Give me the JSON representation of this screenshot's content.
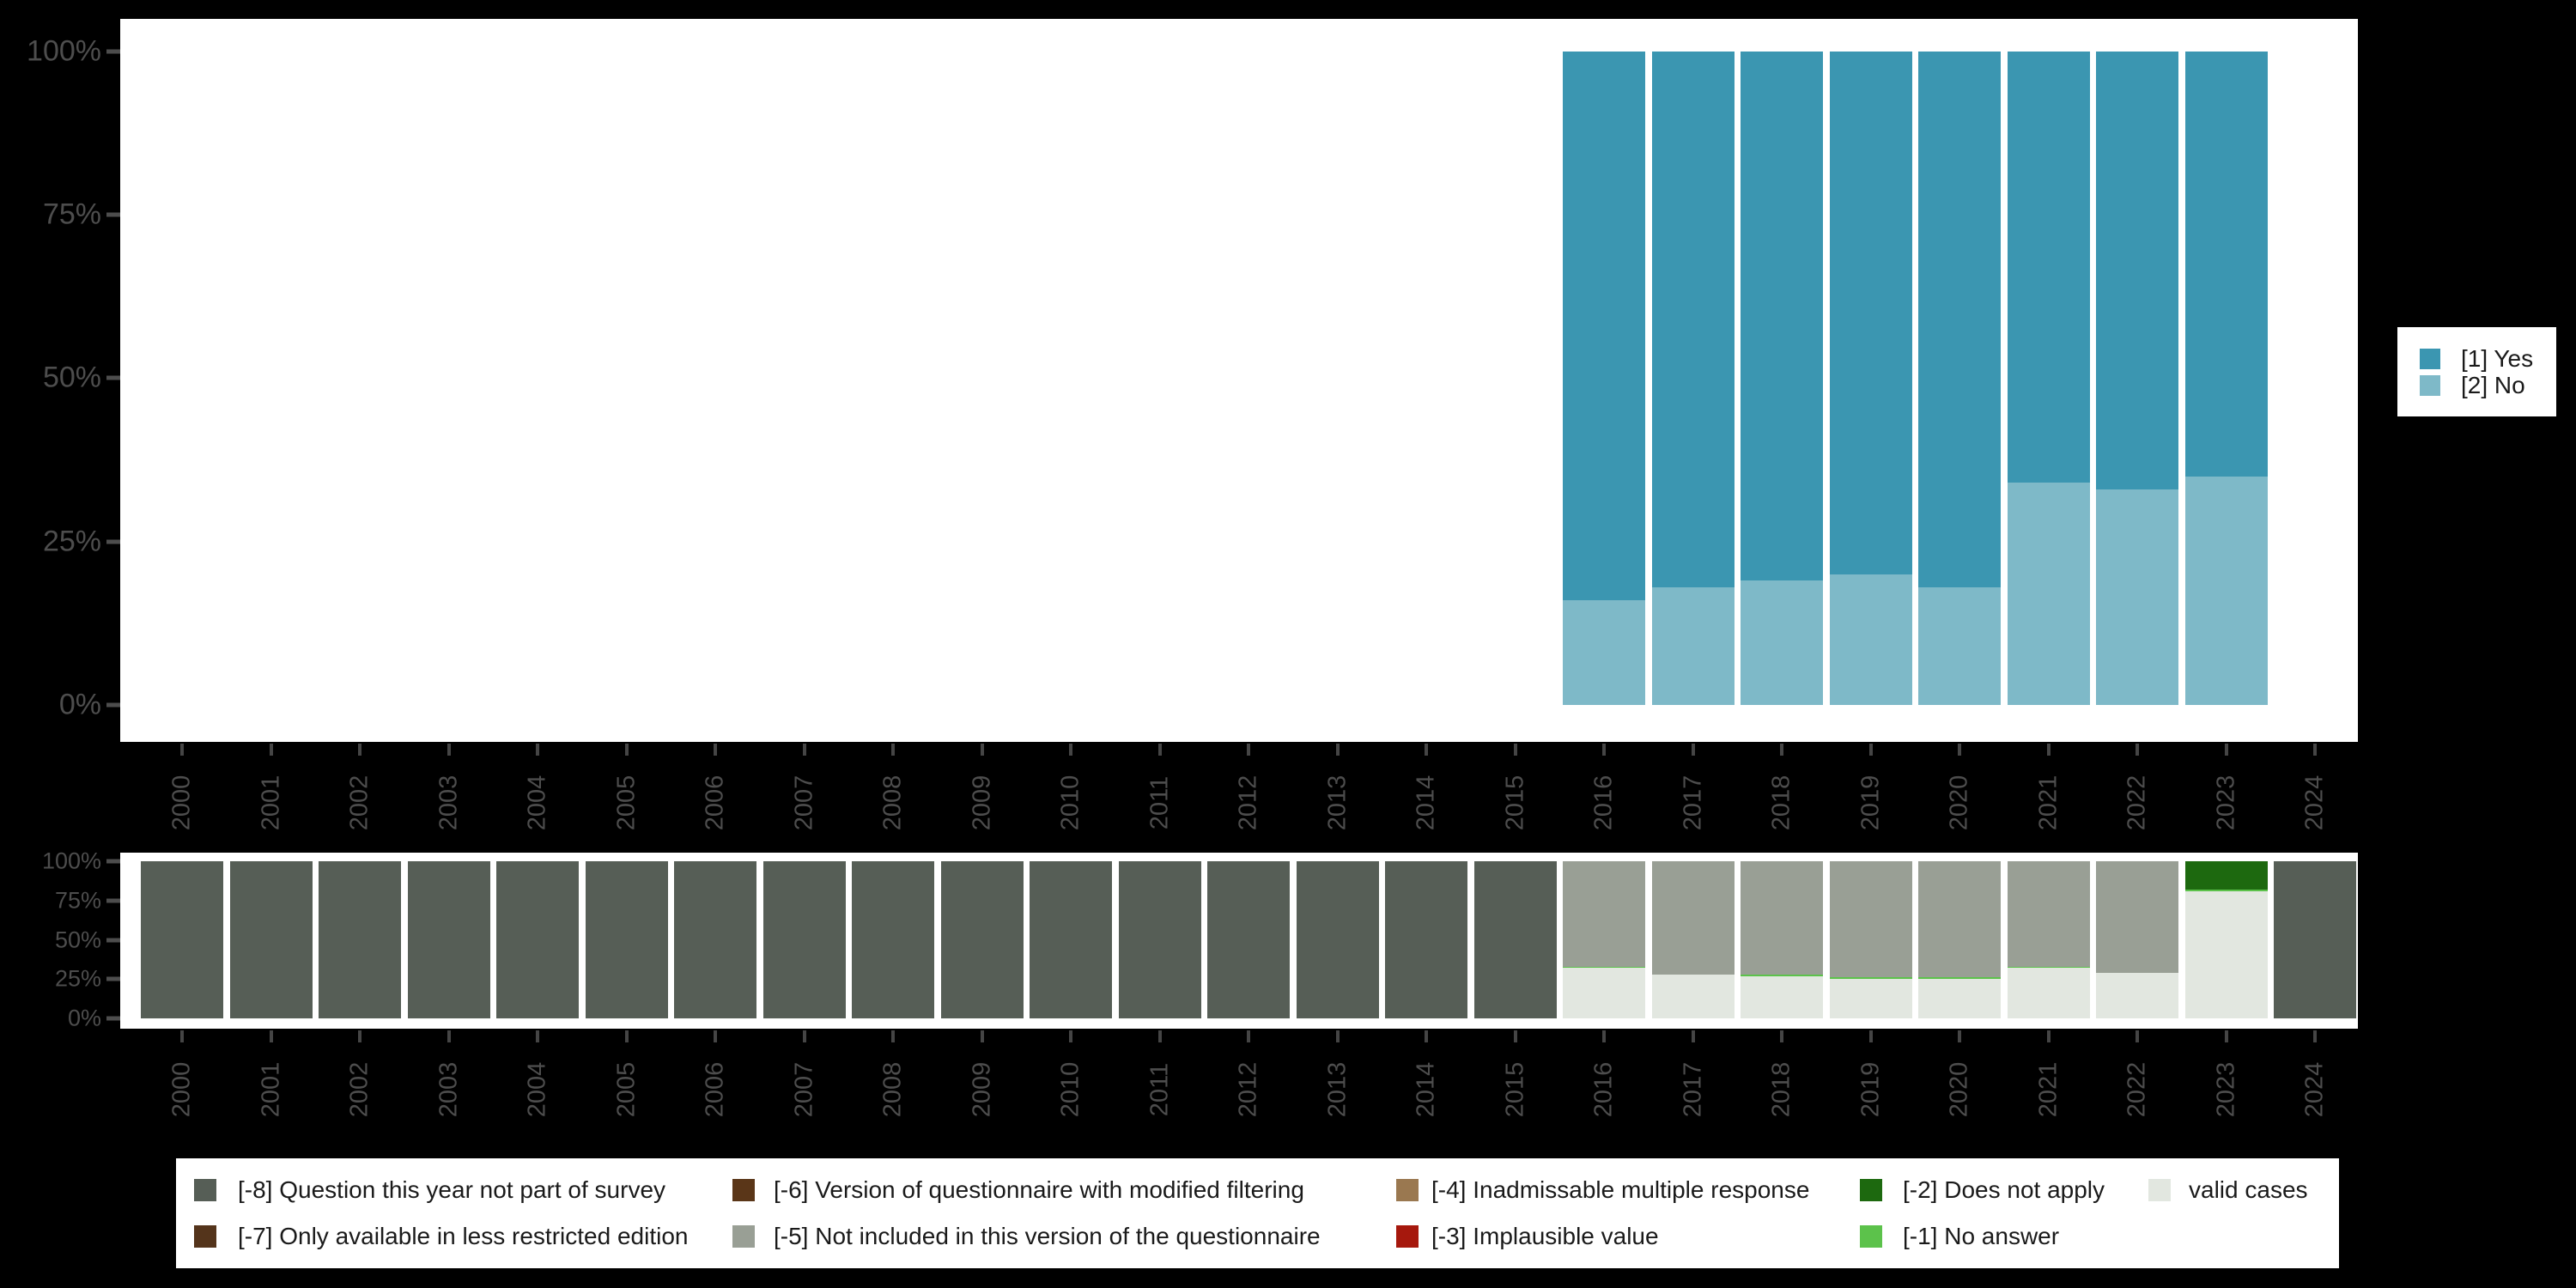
{
  "background": "#000000",
  "panel_color": "#ffffff",
  "axis_text_color": "#4d4d4d",
  "legend_text_color": "#1a1a1a",
  "years": [
    "2000",
    "2001",
    "2002",
    "2003",
    "2004",
    "2005",
    "2006",
    "2007",
    "2008",
    "2009",
    "2010",
    "2011",
    "2012",
    "2013",
    "2014",
    "2015",
    "2016",
    "2017",
    "2018",
    "2019",
    "2020",
    "2021",
    "2022",
    "2023",
    "2024"
  ],
  "y_axis_labels": [
    "100%",
    "75%",
    "50%",
    "25%",
    "0%"
  ],
  "colors": {
    "yes": "#3B96B1",
    "no": "#7EB9C8",
    "m8": "#565E56",
    "m7": "#54341B",
    "m6": "#5A3618",
    "m5": "#999F95",
    "m4": "#9A7850",
    "m3": "#A6180D",
    "m2": "#1D690F",
    "m1": "#5CC24B",
    "valid": "#E2E7E0"
  },
  "value_legend": {
    "items": [
      {
        "key": "yes",
        "label": "[1] Yes"
      },
      {
        "key": "no",
        "label": "[2] No"
      }
    ]
  },
  "missing_legend": {
    "items": [
      {
        "key": "m8",
        "label": "[-8] Question this year not part of survey",
        "row": 0,
        "col": 0
      },
      {
        "key": "m7",
        "label": "[-7] Only available in less restricted edition",
        "row": 1,
        "col": 0
      },
      {
        "key": "m6",
        "label": "[-6] Version of questionnaire with modified filtering",
        "row": 0,
        "col": 1
      },
      {
        "key": "m5",
        "label": "[-5] Not included in this version of the questionnaire",
        "row": 1,
        "col": 1
      },
      {
        "key": "m4",
        "label": "[-4] Inadmissable multiple response",
        "row": 0,
        "col": 2
      },
      {
        "key": "m3",
        "label": "[-3] Implausible value",
        "row": 1,
        "col": 2
      },
      {
        "key": "m2",
        "label": "[-2] Does not apply",
        "row": 0,
        "col": 3
      },
      {
        "key": "m1",
        "label": "[-1] No answer",
        "row": 1,
        "col": 3
      },
      {
        "key": "valid",
        "label": "valid cases",
        "row": 0,
        "col": 4
      }
    ]
  },
  "chart_data": [
    {
      "type": "bar",
      "stacked": true,
      "title": "",
      "xlabel": "",
      "ylabel": "",
      "ylim": [
        0,
        100
      ],
      "ytick_labels": [
        "100%",
        "75%",
        "50%",
        "25%",
        "0%"
      ],
      "grid": false,
      "legend_position": "right",
      "categories": [
        "2000",
        "2001",
        "2002",
        "2003",
        "2004",
        "2005",
        "2006",
        "2007",
        "2008",
        "2009",
        "2010",
        "2011",
        "2012",
        "2013",
        "2014",
        "2015",
        "2016",
        "2017",
        "2018",
        "2019",
        "2020",
        "2021",
        "2022",
        "2023",
        "2024"
      ],
      "series": [
        {
          "name": "[1] Yes",
          "key": "yes",
          "values": [
            null,
            null,
            null,
            null,
            null,
            null,
            null,
            null,
            null,
            null,
            null,
            null,
            null,
            null,
            null,
            null,
            84,
            82,
            81,
            80,
            82,
            66,
            67,
            65,
            null
          ]
        },
        {
          "name": "[2] No",
          "key": "no",
          "values": [
            null,
            null,
            null,
            null,
            null,
            null,
            null,
            null,
            null,
            null,
            null,
            null,
            null,
            null,
            null,
            null,
            16,
            18,
            19,
            20,
            18,
            34,
            33,
            35,
            null
          ]
        }
      ]
    },
    {
      "type": "bar",
      "stacked": true,
      "title": "",
      "xlabel": "",
      "ylabel": "",
      "ylim": [
        0,
        100
      ],
      "ytick_labels": [
        "100%",
        "75%",
        "50%",
        "25%",
        "0%"
      ],
      "grid": false,
      "legend_position": "bottom",
      "categories": [
        "2000",
        "2001",
        "2002",
        "2003",
        "2004",
        "2005",
        "2006",
        "2007",
        "2008",
        "2009",
        "2010",
        "2011",
        "2012",
        "2013",
        "2014",
        "2015",
        "2016",
        "2017",
        "2018",
        "2019",
        "2020",
        "2021",
        "2022",
        "2023",
        "2024"
      ],
      "bars": [
        [
          {
            "key": "m8",
            "pct": 100
          }
        ],
        [
          {
            "key": "m8",
            "pct": 100
          }
        ],
        [
          {
            "key": "m8",
            "pct": 100
          }
        ],
        [
          {
            "key": "m8",
            "pct": 100
          }
        ],
        [
          {
            "key": "m8",
            "pct": 100
          }
        ],
        [
          {
            "key": "m8",
            "pct": 100
          }
        ],
        [
          {
            "key": "m8",
            "pct": 100
          }
        ],
        [
          {
            "key": "m8",
            "pct": 100
          }
        ],
        [
          {
            "key": "m8",
            "pct": 100
          }
        ],
        [
          {
            "key": "m8",
            "pct": 100
          }
        ],
        [
          {
            "key": "m8",
            "pct": 100
          }
        ],
        [
          {
            "key": "m8",
            "pct": 100
          }
        ],
        [
          {
            "key": "m8",
            "pct": 100
          }
        ],
        [
          {
            "key": "m8",
            "pct": 100
          }
        ],
        [
          {
            "key": "m8",
            "pct": 100
          }
        ],
        [
          {
            "key": "m8",
            "pct": 100
          }
        ],
        [
          {
            "key": "m5",
            "pct": 67
          },
          {
            "key": "m1",
            "pct": 1
          },
          {
            "key": "valid",
            "pct": 32
          }
        ],
        [
          {
            "key": "m5",
            "pct": 72
          },
          {
            "key": "valid",
            "pct": 28
          }
        ],
        [
          {
            "key": "m5",
            "pct": 72
          },
          {
            "key": "m1",
            "pct": 1
          },
          {
            "key": "valid",
            "pct": 27
          }
        ],
        [
          {
            "key": "m5",
            "pct": 74
          },
          {
            "key": "m1",
            "pct": 1
          },
          {
            "key": "valid",
            "pct": 25
          }
        ],
        [
          {
            "key": "m5",
            "pct": 74
          },
          {
            "key": "m1",
            "pct": 1
          },
          {
            "key": "valid",
            "pct": 25
          }
        ],
        [
          {
            "key": "m5",
            "pct": 67
          },
          {
            "key": "m1",
            "pct": 1
          },
          {
            "key": "valid",
            "pct": 32
          }
        ],
        [
          {
            "key": "m5",
            "pct": 71
          },
          {
            "key": "valid",
            "pct": 29
          }
        ],
        [
          {
            "key": "m2",
            "pct": 18
          },
          {
            "key": "m1",
            "pct": 1
          },
          {
            "key": "valid",
            "pct": 81
          }
        ],
        [
          {
            "key": "m8",
            "pct": 100
          }
        ]
      ]
    }
  ]
}
